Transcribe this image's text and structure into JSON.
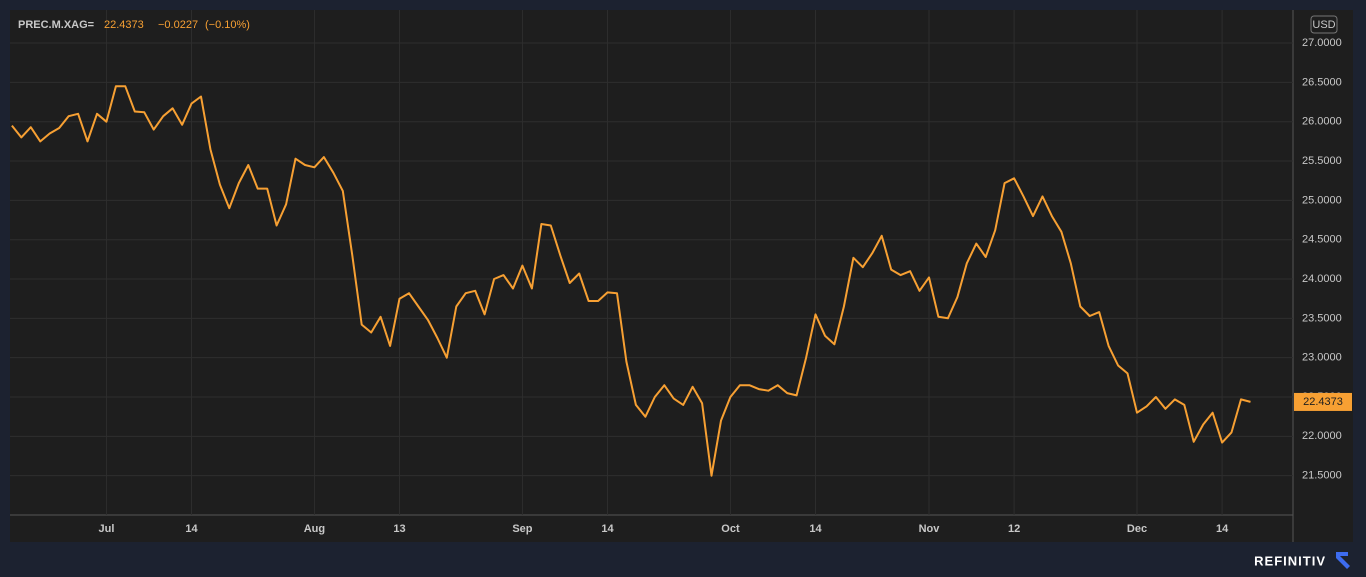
{
  "chart_data": {
    "type": "line",
    "title": "PREC.M.XAG=",
    "last_price": "22.4373",
    "change": "−0.0227",
    "change_pct": "(−0.10%)",
    "currency": "USD",
    "brand": "REFINITIV",
    "grid": true,
    "x": [
      0,
      1,
      2,
      3,
      4,
      5,
      6,
      7,
      8,
      9,
      10,
      11,
      12,
      13,
      14,
      15,
      16,
      17,
      18,
      19,
      20,
      21,
      22,
      23,
      24,
      25,
      26,
      27,
      28,
      29,
      30,
      31,
      32,
      33,
      34,
      35,
      36,
      37,
      38,
      39,
      40,
      41,
      42,
      43,
      44,
      45,
      46,
      47,
      48,
      49,
      50,
      51,
      52,
      53,
      54,
      55,
      56,
      57,
      58,
      59,
      60,
      61,
      62,
      63,
      64,
      65,
      66,
      67,
      68,
      69,
      70,
      71,
      72,
      73,
      74,
      75,
      76,
      77,
      78,
      79,
      80,
      81,
      82,
      83,
      84,
      85,
      86,
      87,
      88,
      89,
      90,
      91,
      92,
      93,
      94,
      95,
      96,
      97,
      98,
      99,
      100,
      101,
      102,
      103,
      104,
      105,
      106,
      107,
      108,
      109,
      110,
      111,
      112,
      113,
      114,
      115,
      116,
      117,
      118,
      119,
      120,
      121,
      122,
      123,
      124,
      125,
      126,
      127,
      128,
      129,
      130,
      131
    ],
    "series": [
      {
        "name": "PREC.M.XAG=",
        "color": "#f7a033",
        "values": [
          25.95,
          25.8,
          25.93,
          25.75,
          25.85,
          25.92,
          26.07,
          26.1,
          25.75,
          26.1,
          26.0,
          26.45,
          26.45,
          26.13,
          26.12,
          25.9,
          26.07,
          26.17,
          25.96,
          26.23,
          26.32,
          25.65,
          25.2,
          24.9,
          25.22,
          25.45,
          25.15,
          25.15,
          24.68,
          24.95,
          25.53,
          25.45,
          25.42,
          25.55,
          25.35,
          25.12,
          24.3,
          23.42,
          23.32,
          23.52,
          23.15,
          23.75,
          23.82,
          23.65,
          23.48,
          23.25,
          23.0,
          23.65,
          23.82,
          23.85,
          23.55,
          24.0,
          24.05,
          23.88,
          24.17,
          23.88,
          24.7,
          24.68,
          24.3,
          23.95,
          24.07,
          23.72,
          23.72,
          23.83,
          23.82,
          22.95,
          22.4,
          22.25,
          22.5,
          22.65,
          22.48,
          22.4,
          22.63,
          22.42,
          21.5,
          22.2,
          22.5,
          22.65,
          22.65,
          22.6,
          22.58,
          22.65,
          22.55,
          22.52,
          23.0,
          23.55,
          23.28,
          23.17,
          23.65,
          24.27,
          24.15,
          24.33,
          24.55,
          24.12,
          24.05,
          24.1,
          23.85,
          24.02,
          23.52,
          23.5,
          23.77,
          24.2,
          24.45,
          24.28,
          24.62,
          25.22,
          25.28,
          25.05,
          24.8,
          25.05,
          24.8,
          24.6,
          24.2,
          23.65,
          23.53,
          23.58,
          23.15,
          22.9,
          22.8,
          22.3,
          22.38,
          22.5,
          22.35,
          22.47,
          22.4,
          21.93,
          22.15,
          22.3,
          21.92,
          22.05,
          22.47,
          22.4373
        ]
      }
    ],
    "xlim": [
      -0.2,
      135.5
    ],
    "xticks": [
      {
        "value": 10,
        "label": "Jul"
      },
      {
        "value": 19,
        "label": "14"
      },
      {
        "value": 32,
        "label": "Aug"
      },
      {
        "value": 41,
        "label": "13"
      },
      {
        "value": 54,
        "label": "Sep"
      },
      {
        "value": 63,
        "label": "14"
      },
      {
        "value": 76,
        "label": "Oct"
      },
      {
        "value": 85,
        "label": "14"
      },
      {
        "value": 97,
        "label": "Nov"
      },
      {
        "value": 106,
        "label": "12"
      },
      {
        "value": 119,
        "label": "Dec"
      },
      {
        "value": 128,
        "label": "14"
      }
    ],
    "ylim": [
      21.0,
      27.42
    ],
    "yticks": [
      {
        "value": 21.5,
        "label": "21.5000"
      },
      {
        "value": 22.0,
        "label": "22.0000"
      },
      {
        "value": 22.5,
        "label": "22.5000"
      },
      {
        "value": 23.0,
        "label": "23.0000"
      },
      {
        "value": 23.5,
        "label": "23.5000"
      },
      {
        "value": 24.0,
        "label": "24.0000"
      },
      {
        "value": 24.5,
        "label": "24.5000"
      },
      {
        "value": 25.0,
        "label": "25.0000"
      },
      {
        "value": 25.5,
        "label": "25.5000"
      },
      {
        "value": 26.0,
        "label": "26.0000"
      },
      {
        "value": 26.5,
        "label": "26.5000"
      },
      {
        "value": 27.0,
        "label": "27.0000"
      }
    ]
  }
}
